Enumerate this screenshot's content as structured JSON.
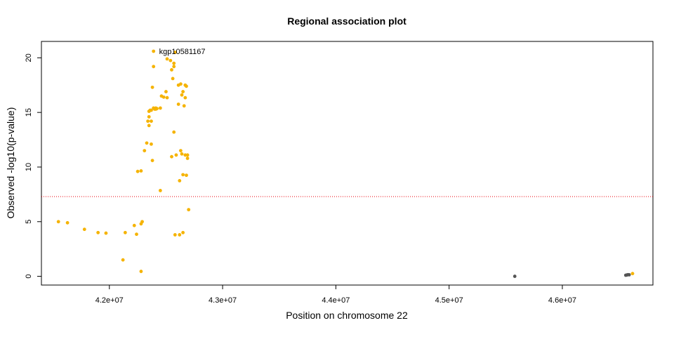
{
  "chart_data": {
    "type": "scatter",
    "title": "Regional association plot",
    "xlabel": "Position on chromosome 22",
    "ylabel": "Observed -log10(p-value)",
    "xlim": [
      41400000,
      46800000
    ],
    "ylim": [
      -0.8,
      21.5
    ],
    "x_ticks": [
      {
        "value": 42000000,
        "label": "4.2e+07"
      },
      {
        "value": 43000000,
        "label": "4.3e+07"
      },
      {
        "value": 44000000,
        "label": "4.4e+07"
      },
      {
        "value": 45000000,
        "label": "4.5e+07"
      },
      {
        "value": 46000000,
        "label": "4.6e+07"
      }
    ],
    "y_ticks": [
      {
        "value": 0,
        "label": "0"
      },
      {
        "value": 5,
        "label": "5"
      },
      {
        "value": 10,
        "label": "10"
      },
      {
        "value": 15,
        "label": "15"
      },
      {
        "value": 20,
        "label": "20"
      }
    ],
    "threshold": {
      "value": 7.3,
      "color": "#e8000b",
      "style": "dotted"
    },
    "grid": false,
    "series": [
      {
        "color": "#f5b300",
        "points": [
          [
            41550000,
            5.0
          ],
          [
            41630000,
            4.9
          ],
          [
            41780000,
            4.3
          ],
          [
            41900000,
            4.0
          ],
          [
            41970000,
            3.95
          ],
          [
            42120000,
            1.5
          ],
          [
            42140000,
            4.0
          ],
          [
            42220000,
            4.65
          ],
          [
            42240000,
            3.85
          ],
          [
            42280000,
            4.8
          ],
          [
            42290000,
            5.0
          ],
          [
            42280000,
            0.45
          ],
          [
            42250000,
            9.6
          ],
          [
            42280000,
            9.65
          ],
          [
            42310000,
            11.5
          ],
          [
            42330000,
            12.2
          ],
          [
            42340000,
            14.2
          ],
          [
            42350000,
            13.8
          ],
          [
            42350000,
            14.6
          ],
          [
            42350000,
            15.1
          ],
          [
            42360000,
            15.2
          ],
          [
            42370000,
            14.2
          ],
          [
            42370000,
            12.1
          ],
          [
            42370000,
            15.2
          ],
          [
            42380000,
            17.3
          ],
          [
            42380000,
            10.6
          ],
          [
            42390000,
            19.2
          ],
          [
            42390000,
            15.4
          ],
          [
            42400000,
            15.3
          ],
          [
            42410000,
            15.4
          ],
          [
            42410000,
            15.3
          ],
          [
            42420000,
            15.35
          ],
          [
            42450000,
            15.4
          ],
          [
            42450000,
            7.85
          ],
          [
            42460000,
            16.5
          ],
          [
            42480000,
            16.4
          ],
          [
            42500000,
            16.9
          ],
          [
            42510000,
            19.9
          ],
          [
            42510000,
            16.35
          ],
          [
            42540000,
            19.75
          ],
          [
            42550000,
            18.9
          ],
          [
            42550000,
            10.95
          ],
          [
            42560000,
            18.1
          ],
          [
            42570000,
            19.5
          ],
          [
            42570000,
            19.2
          ],
          [
            42570000,
            13.2
          ],
          [
            42580000,
            20.5
          ],
          [
            42580000,
            3.8
          ],
          [
            42590000,
            11.1
          ],
          [
            42610000,
            17.5
          ],
          [
            42610000,
            15.75
          ],
          [
            42620000,
            8.75
          ],
          [
            42620000,
            3.8
          ],
          [
            42630000,
            17.6
          ],
          [
            42630000,
            11.5
          ],
          [
            42640000,
            16.6
          ],
          [
            42640000,
            11.2
          ],
          [
            42650000,
            16.9
          ],
          [
            42650000,
            9.3
          ],
          [
            42650000,
            4.0
          ],
          [
            42660000,
            15.6
          ],
          [
            42670000,
            17.5
          ],
          [
            42670000,
            16.35
          ],
          [
            42670000,
            11.1
          ],
          [
            42680000,
            17.4
          ],
          [
            42680000,
            9.25
          ],
          [
            42690000,
            11.1
          ],
          [
            42690000,
            10.8
          ],
          [
            42700000,
            6.1
          ],
          [
            46620000,
            0.25
          ],
          [
            42390000,
            20.6
          ]
        ]
      },
      {
        "color": "#555555",
        "points": [
          [
            45580000,
            0.0
          ],
          [
            46560000,
            0.1
          ],
          [
            46570000,
            0.12
          ],
          [
            46580000,
            0.15
          ],
          [
            46590000,
            0.14
          ]
        ]
      }
    ],
    "annotations": [
      {
        "text": "kgp10581167",
        "x": 42390000,
        "y": 20.6
      }
    ]
  }
}
